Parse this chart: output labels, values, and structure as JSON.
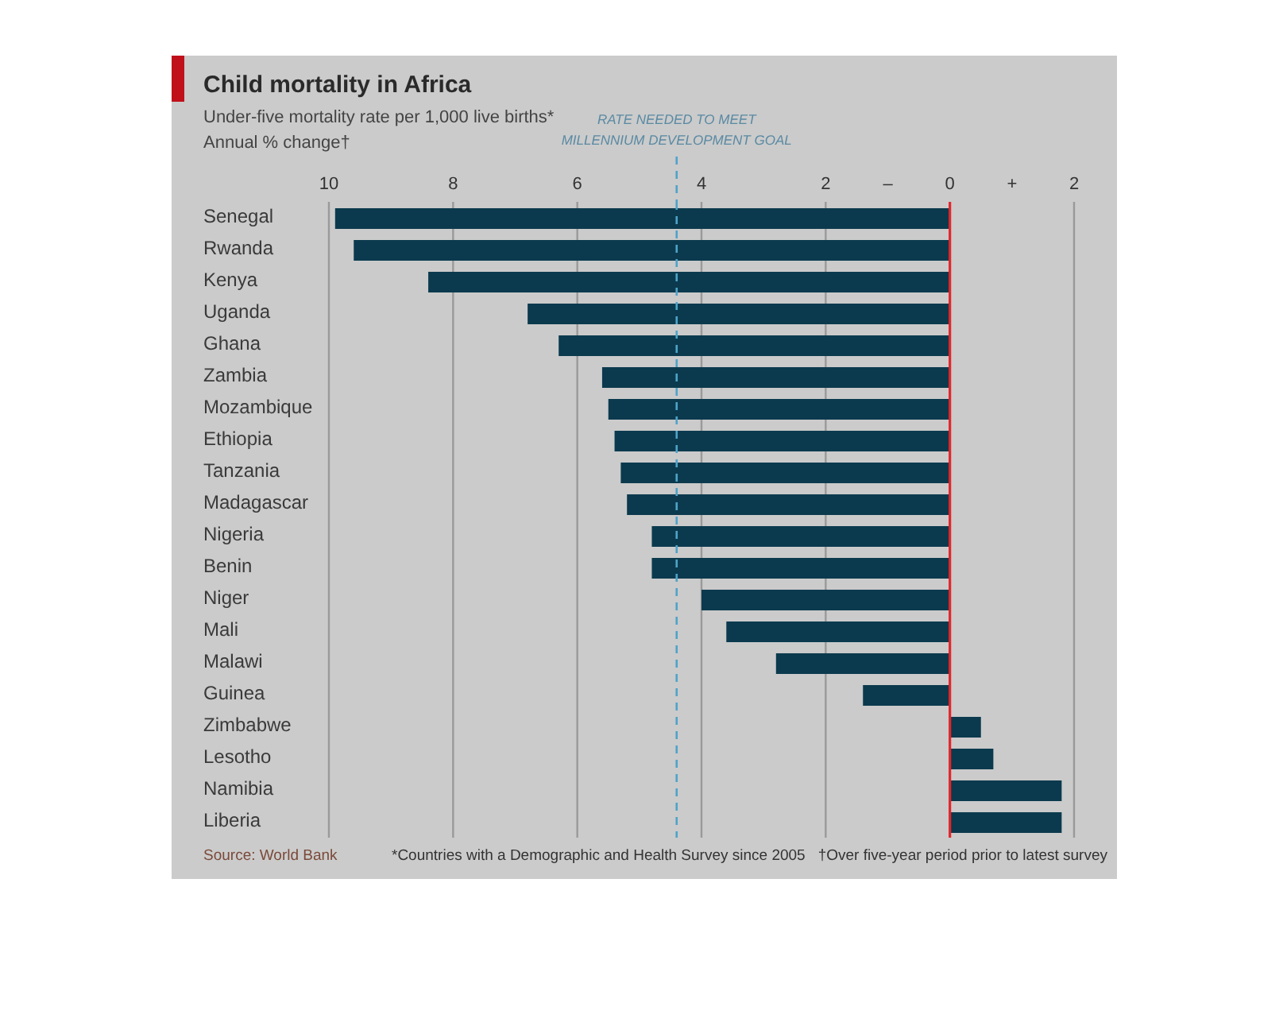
{
  "chart_data": {
    "type": "bar",
    "orientation": "horizontal",
    "title": "Child mortality in Africa",
    "subtitle": "Under-five mortality rate per 1,000 live births*",
    "xlabel": "Annual % change†",
    "categories": [
      "Senegal",
      "Rwanda",
      "Kenya",
      "Uganda",
      "Ghana",
      "Zambia",
      "Mozambique",
      "Ethiopia",
      "Tanzania",
      "Madagascar",
      "Nigeria",
      "Benin",
      "Niger",
      "Mali",
      "Malawi",
      "Guinea",
      "Zimbabwe",
      "Lesotho",
      "Namibia",
      "Liberia"
    ],
    "values": [
      -9.9,
      -9.6,
      -8.4,
      -6.8,
      -6.3,
      -5.6,
      -5.5,
      -5.4,
      -5.3,
      -5.2,
      -4.8,
      -4.8,
      -4.0,
      -3.6,
      -2.8,
      -1.4,
      0.5,
      0.7,
      1.8,
      1.8
    ],
    "color": "#0b3a4e",
    "xlim": [
      -10,
      2
    ],
    "xticks": [
      {
        "value": -10,
        "label": "10"
      },
      {
        "value": -8,
        "label": "8"
      },
      {
        "value": -6,
        "label": "6"
      },
      {
        "value": -4,
        "label": "4"
      },
      {
        "value": -2,
        "label": "2"
      },
      {
        "value": -1,
        "label": "–"
      },
      0,
      {
        "value": 1,
        "label": "+"
      },
      2
    ],
    "grid": "x",
    "ref_lines": [
      {
        "axis": "x",
        "value": 0,
        "color": "#e3262b"
      },
      {
        "axis": "x",
        "value": -4.4,
        "label": "RATE NEEDED TO MEET MILLENNIUM DEVELOPMENT GOAL",
        "color": "#4fa3c8",
        "line_style": "dashed"
      }
    ],
    "annotations": [
      "Source: World Bank",
      "*Countries with a Demographic and Health Survey since 2005",
      "†Over five-year period prior to latest survey"
    ]
  }
}
